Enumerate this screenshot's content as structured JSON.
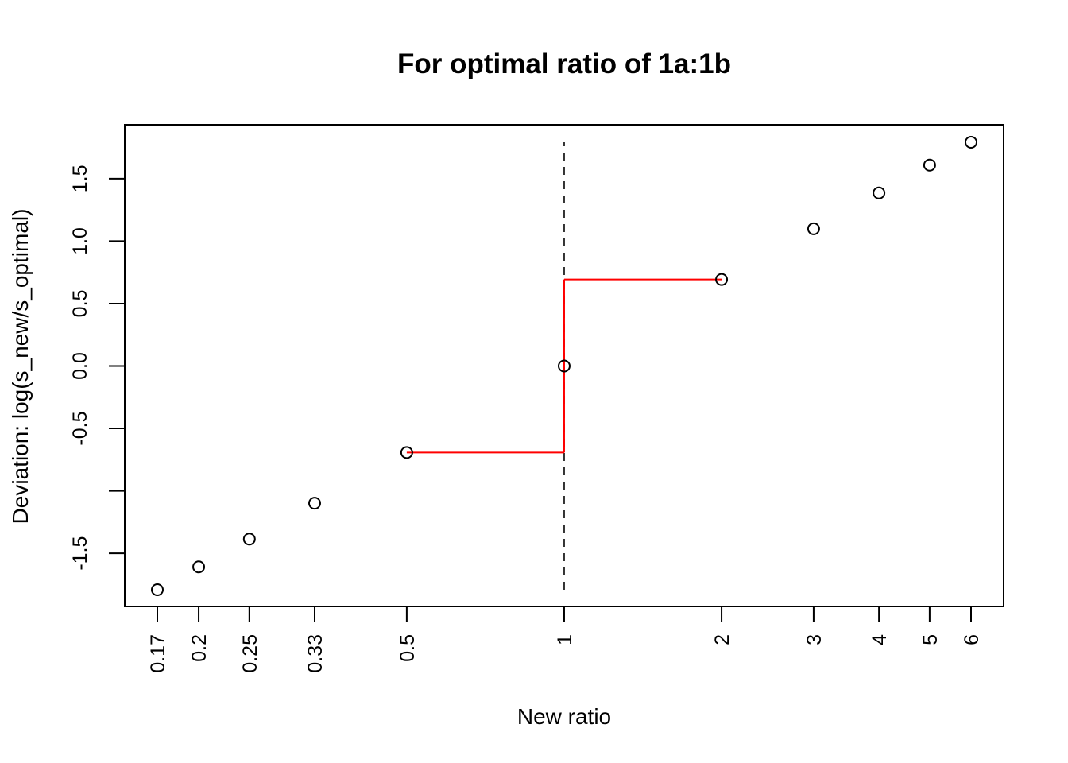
{
  "chart_data": {
    "type": "scatter",
    "title": "For optimal ratio of 1a:1b",
    "xlabel": "New ratio",
    "ylabel": "Deviation: log(s_new/s_optimal)",
    "x_scale": "log",
    "xlim": [
      0.1667,
      6
    ],
    "ylim": [
      -1.792,
      1.792
    ],
    "x_ticks": [
      {
        "value": 0.1667,
        "label": "0.17"
      },
      {
        "value": 0.2,
        "label": "0.2"
      },
      {
        "value": 0.25,
        "label": "0.25"
      },
      {
        "value": 0.3333,
        "label": "0.33"
      },
      {
        "value": 0.5,
        "label": "0.5"
      },
      {
        "value": 1,
        "label": "1"
      },
      {
        "value": 2,
        "label": "2"
      },
      {
        "value": 3,
        "label": "3"
      },
      {
        "value": 4,
        "label": "4"
      },
      {
        "value": 5,
        "label": "5"
      },
      {
        "value": 6,
        "label": "6"
      }
    ],
    "y_ticks": [
      {
        "value": -1.5,
        "label": "-1.5"
      },
      {
        "value": -1.0,
        "label": ""
      },
      {
        "value": -0.5,
        "label": "-0.5"
      },
      {
        "value": 0.0,
        "label": "0.0"
      },
      {
        "value": 0.5,
        "label": "0.5"
      },
      {
        "value": 1.0,
        "label": "1.0"
      },
      {
        "value": 1.5,
        "label": "1.5"
      }
    ],
    "points": [
      {
        "x": 0.1667,
        "y": -1.792
      },
      {
        "x": 0.2,
        "y": -1.609
      },
      {
        "x": 0.25,
        "y": -1.386
      },
      {
        "x": 0.3333,
        "y": -1.099
      },
      {
        "x": 0.5,
        "y": -0.693
      },
      {
        "x": 1,
        "y": 0.0
      },
      {
        "x": 2,
        "y": 0.693
      },
      {
        "x": 3,
        "y": 1.099
      },
      {
        "x": 4,
        "y": 1.386
      },
      {
        "x": 5,
        "y": 1.609
      },
      {
        "x": 6,
        "y": 1.792
      }
    ],
    "reference_line": {
      "x": 1,
      "y_from": -1.792,
      "y_to": 1.792,
      "style": "dashed",
      "color": "#333333"
    },
    "step_segments": [
      {
        "x0": 0.5,
        "y0": -0.693,
        "x1": 1,
        "y1": -0.693
      },
      {
        "x0": 1,
        "y0": -0.693,
        "x1": 1,
        "y1": 0.693
      },
      {
        "x0": 1,
        "y0": 0.693,
        "x1": 2,
        "y1": 0.693
      }
    ],
    "step_color": "#ff0000",
    "point_color": "#000000",
    "grid": false,
    "legend": "none"
  }
}
